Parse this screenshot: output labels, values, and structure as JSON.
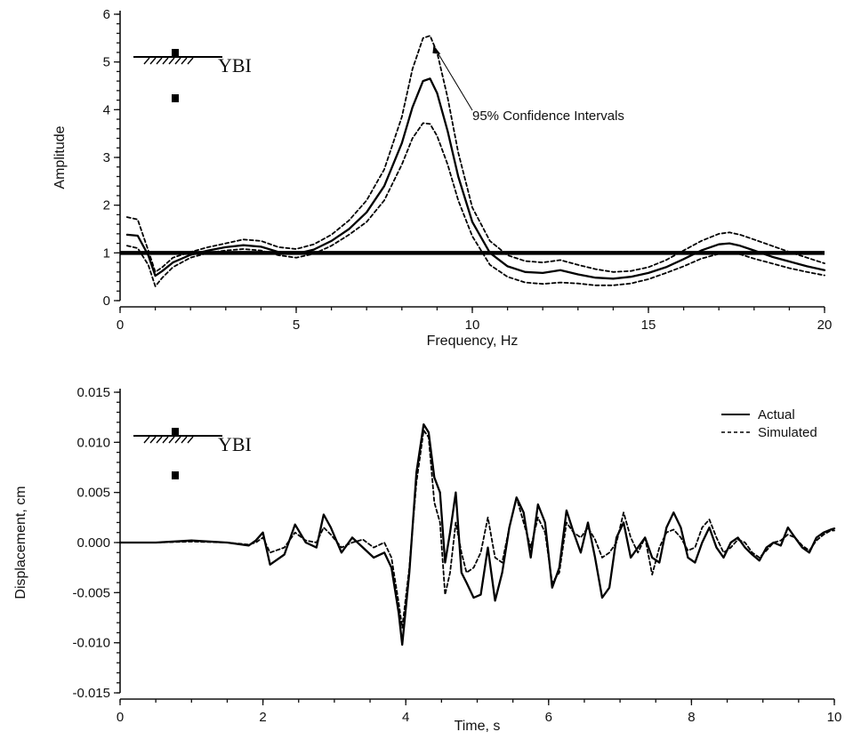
{
  "chart_data": [
    {
      "type": "line",
      "xlabel": "Frequency, Hz",
      "ylabel": "Amplitude",
      "xlim": [
        0,
        20
      ],
      "ylim": [
        0,
        6
      ],
      "xticks": [
        "0",
        "5",
        "10",
        "15",
        "20"
      ],
      "yticks": [
        "0",
        "1",
        "2",
        "3",
        "4",
        "5",
        "6"
      ],
      "inset_label": "YBI",
      "annotation": "95% Confidence Intervals",
      "reference_line": {
        "y": 1.0
      },
      "series": [
        {
          "style": "solid",
          "x": [
            0.2,
            0.5,
            0.8,
            1.0,
            1.2,
            1.5,
            2.0,
            2.5,
            3.0,
            3.5,
            4.0,
            4.5,
            5.0,
            5.5,
            6.0,
            6.5,
            7.0,
            7.5,
            8.0,
            8.3,
            8.6,
            8.8,
            9.0,
            9.3,
            9.6,
            10.0,
            10.5,
            11.0,
            11.5,
            12.0,
            12.5,
            13.0,
            13.5,
            14.0,
            14.5,
            15.0,
            15.5,
            16.0,
            16.5,
            17.0,
            17.3,
            17.6,
            18.0,
            18.5,
            19.0,
            19.5,
            20.0
          ],
          "values": [
            1.38,
            1.36,
            0.95,
            0.52,
            0.62,
            0.8,
            0.96,
            1.05,
            1.12,
            1.16,
            1.13,
            1.02,
            0.98,
            1.07,
            1.25,
            1.5,
            1.85,
            2.4,
            3.3,
            4.05,
            4.6,
            4.65,
            4.35,
            3.55,
            2.6,
            1.65,
            1.0,
            0.72,
            0.6,
            0.58,
            0.64,
            0.55,
            0.48,
            0.46,
            0.5,
            0.58,
            0.7,
            0.87,
            1.05,
            1.18,
            1.2,
            1.15,
            1.05,
            0.92,
            0.82,
            0.72,
            0.64
          ]
        },
        {
          "style": "dashed",
          "x": [
            0.2,
            0.5,
            0.8,
            1.0,
            1.2,
            1.5,
            2.0,
            2.5,
            3.0,
            3.5,
            4.0,
            4.5,
            5.0,
            5.5,
            6.0,
            6.5,
            7.0,
            7.5,
            8.0,
            8.3,
            8.6,
            8.8,
            9.0,
            9.3,
            9.6,
            10.0,
            10.5,
            11.0,
            11.5,
            12.0,
            12.5,
            13.0,
            13.5,
            14.0,
            14.5,
            15.0,
            15.5,
            16.0,
            16.5,
            17.0,
            17.3,
            17.6,
            18.0,
            18.5,
            19.0,
            19.5,
            20.0
          ],
          "values": [
            1.75,
            1.7,
            1.05,
            0.6,
            0.7,
            0.9,
            1.02,
            1.12,
            1.2,
            1.28,
            1.25,
            1.12,
            1.08,
            1.18,
            1.38,
            1.68,
            2.1,
            2.75,
            3.85,
            4.85,
            5.5,
            5.55,
            5.2,
            4.25,
            3.1,
            1.95,
            1.25,
            0.95,
            0.83,
            0.8,
            0.85,
            0.75,
            0.66,
            0.6,
            0.62,
            0.7,
            0.85,
            1.05,
            1.25,
            1.4,
            1.43,
            1.38,
            1.28,
            1.15,
            1.02,
            0.9,
            0.78
          ]
        },
        {
          "style": "dashed",
          "x": [
            0.2,
            0.5,
            0.8,
            1.0,
            1.2,
            1.5,
            2.0,
            2.5,
            3.0,
            3.5,
            4.0,
            4.5,
            5.0,
            5.5,
            6.0,
            6.5,
            7.0,
            7.5,
            8.0,
            8.3,
            8.6,
            8.8,
            9.0,
            9.3,
            9.6,
            10.0,
            10.5,
            11.0,
            11.5,
            12.0,
            12.5,
            13.0,
            13.5,
            14.0,
            14.5,
            15.0,
            15.5,
            16.0,
            16.5,
            17.0,
            17.3,
            17.6,
            18.0,
            18.5,
            19.0,
            19.5,
            20.0
          ],
          "values": [
            1.15,
            1.1,
            0.75,
            0.3,
            0.48,
            0.7,
            0.9,
            1.0,
            1.05,
            1.08,
            1.05,
            0.95,
            0.9,
            0.98,
            1.15,
            1.38,
            1.65,
            2.1,
            2.85,
            3.4,
            3.72,
            3.7,
            3.45,
            2.85,
            2.1,
            1.35,
            0.75,
            0.5,
            0.38,
            0.35,
            0.38,
            0.36,
            0.32,
            0.32,
            0.36,
            0.45,
            0.58,
            0.72,
            0.88,
            0.98,
            1.0,
            0.97,
            0.88,
            0.78,
            0.68,
            0.6,
            0.53
          ]
        }
      ]
    },
    {
      "type": "line",
      "xlabel": "Time, s",
      "ylabel": "Displacement, cm",
      "xlim": [
        0,
        10
      ],
      "ylim": [
        -0.015,
        0.015
      ],
      "xticks": [
        "0",
        "2",
        "4",
        "6",
        "8",
        "10"
      ],
      "yticks": [
        "0.015",
        "0.010",
        "0.005",
        "0.000",
        "-0.005",
        "-0.010",
        "-0.015"
      ],
      "inset_label": "YBI",
      "legend_position": "top-right",
      "series": [
        {
          "name": "Actual",
          "style": "solid",
          "x": [
            0,
            0.5,
            1.0,
            1.5,
            1.8,
            1.9,
            2.0,
            2.1,
            2.3,
            2.45,
            2.6,
            2.75,
            2.85,
            2.95,
            3.1,
            3.25,
            3.4,
            3.55,
            3.7,
            3.8,
            3.9,
            3.95,
            4.05,
            4.15,
            4.25,
            4.32,
            4.4,
            4.48,
            4.55,
            4.62,
            4.7,
            4.78,
            4.85,
            4.95,
            5.05,
            5.15,
            5.25,
            5.35,
            5.45,
            5.55,
            5.65,
            5.75,
            5.85,
            5.95,
            6.05,
            6.15,
            6.25,
            6.35,
            6.45,
            6.55,
            6.65,
            6.75,
            6.85,
            6.95,
            7.05,
            7.15,
            7.25,
            7.35,
            7.45,
            7.55,
            7.65,
            7.75,
            7.85,
            7.95,
            8.05,
            8.15,
            8.25,
            8.35,
            8.45,
            8.55,
            8.65,
            8.75,
            8.85,
            8.95,
            9.05,
            9.15,
            9.25,
            9.35,
            9.45,
            9.55,
            9.65,
            9.75,
            9.85,
            9.95,
            10.0
          ],
          "values": [
            0.0,
            0.0,
            0.0002,
            0.0,
            -0.0003,
            0.0002,
            0.001,
            -0.0022,
            -0.0012,
            0.0018,
            0.0,
            -0.0005,
            0.0028,
            0.0015,
            -0.001,
            0.0005,
            -0.0005,
            -0.0015,
            -0.001,
            -0.0025,
            -0.007,
            -0.0102,
            -0.003,
            0.007,
            0.0118,
            0.011,
            0.0065,
            0.005,
            -0.002,
            0.001,
            0.005,
            -0.003,
            -0.004,
            -0.0055,
            -0.0052,
            -0.0005,
            -0.0058,
            -0.003,
            0.0015,
            0.0045,
            0.003,
            -0.0015,
            0.0038,
            0.002,
            -0.0045,
            -0.0025,
            0.0032,
            0.001,
            -0.001,
            0.002,
            -0.0015,
            -0.0055,
            -0.0045,
            0.0005,
            0.002,
            -0.0015,
            -0.0005,
            0.0005,
            -0.0015,
            -0.002,
            0.0015,
            0.003,
            0.0015,
            -0.0015,
            -0.002,
            0.0,
            0.0015,
            -0.0005,
            -0.0015,
            0.0,
            0.0005,
            -0.0005,
            -0.0012,
            -0.0018,
            -0.0005,
            0.0,
            -0.0003,
            0.0015,
            0.0005,
            -0.0005,
            -0.001,
            0.0005,
            0.001,
            0.0013,
            0.0014
          ]
        },
        {
          "name": "Simulated",
          "style": "dashed",
          "x": [
            0,
            0.5,
            1.0,
            1.5,
            1.8,
            1.9,
            2.0,
            2.1,
            2.3,
            2.45,
            2.6,
            2.75,
            2.85,
            2.95,
            3.1,
            3.25,
            3.4,
            3.55,
            3.7,
            3.8,
            3.9,
            3.95,
            4.05,
            4.15,
            4.25,
            4.32,
            4.4,
            4.48,
            4.55,
            4.62,
            4.7,
            4.78,
            4.85,
            4.95,
            5.05,
            5.15,
            5.25,
            5.35,
            5.45,
            5.55,
            5.65,
            5.75,
            5.85,
            5.95,
            6.05,
            6.15,
            6.25,
            6.35,
            6.45,
            6.55,
            6.65,
            6.75,
            6.85,
            6.95,
            7.05,
            7.15,
            7.25,
            7.35,
            7.45,
            7.55,
            7.65,
            7.75,
            7.85,
            7.95,
            8.05,
            8.15,
            8.25,
            8.35,
            8.45,
            8.55,
            8.65,
            8.75,
            8.85,
            8.95,
            9.05,
            9.15,
            9.25,
            9.35,
            9.45,
            9.55,
            9.65,
            9.75,
            9.85,
            9.95,
            10.0
          ],
          "values": [
            0.0,
            0.0,
            0.0001,
            0.0,
            -0.0002,
            0.0,
            0.0005,
            -0.001,
            -0.0005,
            0.001,
            0.0002,
            0.0,
            0.0015,
            0.0008,
            -0.0005,
            0.0,
            0.0003,
            -0.0005,
            0.0,
            -0.0015,
            -0.006,
            -0.0085,
            -0.0025,
            0.006,
            0.0112,
            0.0105,
            0.004,
            0.002,
            -0.0052,
            -0.003,
            0.002,
            -0.001,
            -0.003,
            -0.0025,
            -0.001,
            0.0025,
            -0.0015,
            -0.002,
            0.0015,
            0.0045,
            0.002,
            -0.0005,
            0.0025,
            0.001,
            -0.004,
            -0.003,
            0.002,
            0.001,
            0.0005,
            0.0015,
            0.0003,
            -0.0015,
            -0.001,
            0.0,
            0.003,
            0.0005,
            -0.001,
            0.0005,
            -0.0032,
            -0.0005,
            0.001,
            0.0013,
            0.0005,
            -0.0008,
            -0.0005,
            0.0015,
            0.0023,
            0.0005,
            -0.001,
            -0.0005,
            0.0003,
            0.0,
            -0.001,
            -0.0015,
            -0.0008,
            0.0,
            0.0002,
            0.0008,
            0.0005,
            -0.0003,
            -0.0008,
            0.0002,
            0.0008,
            0.0012,
            0.0012
          ]
        }
      ]
    }
  ]
}
